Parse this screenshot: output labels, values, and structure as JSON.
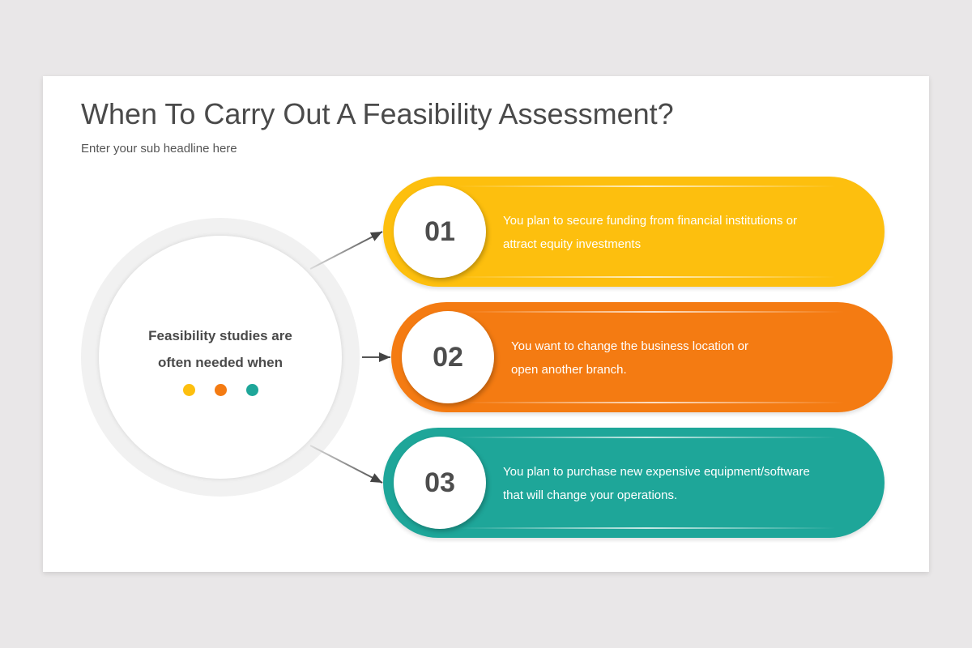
{
  "title": "When To Carry Out A Feasibility Assessment?",
  "subtitle": "Enter your sub headline here",
  "center": {
    "line1": "Feasibility studies are",
    "line2": "often needed when"
  },
  "colors": {
    "yellow": "#fdbf0e",
    "orange": "#f47b12",
    "teal": "#1ea699"
  },
  "items": [
    {
      "number": "01",
      "line1": "You plan to secure funding from financial institutions or",
      "line2": "attract equity investments",
      "color": "#fdbf0e"
    },
    {
      "number": "02",
      "line1": "You want to change the business location or",
      "line2": "open another branch.",
      "color": "#f47b12"
    },
    {
      "number": "03",
      "line1": "You plan to purchase new expensive equipment/software",
      "line2": "that will change your operations.",
      "color": "#1ea699"
    }
  ]
}
